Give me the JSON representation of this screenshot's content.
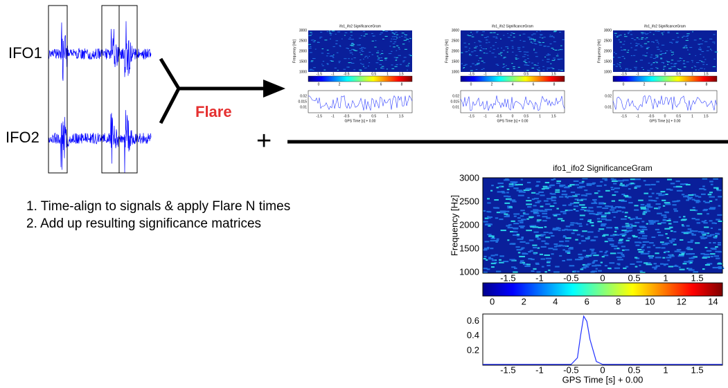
{
  "labels": {
    "ifo1": "IFO1",
    "ifo2": "IFO2",
    "flare": "Flare",
    "plus": "+"
  },
  "steps": [
    "1. Time-align to signals & apply Flare N times",
    "2. Add up resulting significance matrices"
  ],
  "small_plots": [
    {
      "title": "ifo1_ifo2 SignificanceGram",
      "ylabel": "Frequency [Hz]",
      "yticks": [
        3000,
        2500,
        2000,
        1500,
        1000
      ],
      "xticks": [
        -1.5,
        -1,
        -0.5,
        0,
        0.5,
        1,
        1.5
      ],
      "cticks": [
        0,
        2,
        4,
        6,
        8
      ],
      "lower_yticks": [
        0.02,
        0.015,
        0.01
      ],
      "xlabel": "GPS Time [s] + 0.00"
    },
    {
      "title": "ifo1_ifo2 SignificanceGram",
      "ylabel": "Frequency [Hz]",
      "yticks": [
        3000,
        2500,
        2000,
        1500,
        1000
      ],
      "xticks": [
        -1.5,
        -1,
        -0.5,
        0,
        0.5,
        1,
        1.5
      ],
      "cticks": [
        0,
        2,
        4,
        6,
        8
      ],
      "lower_yticks": [
        0.02,
        0.015,
        0.01
      ],
      "xlabel": "GPS Time [s] + 0.00"
    },
    {
      "title": "ifo1_ifo2 SignificanceGram",
      "ylabel": "Frequency [Hz]",
      "yticks": [
        3000,
        2500,
        2000,
        1500,
        1000
      ],
      "xticks": [
        -1.5,
        -1,
        -0.5,
        0,
        0.5,
        1,
        1.5
      ],
      "cticks": [
        0,
        2,
        4,
        6,
        8
      ],
      "lower_yticks": [
        0.02,
        0.01
      ],
      "xlabel": "GPS Time [s] + 0.00"
    }
  ],
  "big_plot": {
    "title": "ifo1_ifo2 SignificanceGram",
    "ylabel": "Frequency [Hz]",
    "yticks": [
      3000,
      2500,
      2000,
      1500,
      1000
    ],
    "ylim": [
      1000,
      3000
    ],
    "xticks": [
      -1.5,
      -1,
      -0.5,
      0,
      0.5,
      1,
      1.5
    ],
    "xlim": [
      -1.9,
      1.9
    ],
    "cticks": [
      0,
      2,
      4,
      6,
      8,
      10,
      12,
      14
    ],
    "clim": [
      -0.6,
      14.6
    ],
    "lower_yticks": [
      0.6,
      0.4,
      0.2
    ],
    "lower_ylim": [
      0,
      0.7
    ],
    "xlabel": "GPS Time [s] + 0.00",
    "curve": {
      "x": [
        -1.9,
        -0.5,
        -0.4,
        -0.35,
        -0.3,
        -0.25,
        -0.2,
        -0.1,
        0,
        1.9
      ],
      "y": [
        0.01,
        0.01,
        0.1,
        0.4,
        0.67,
        0.6,
        0.35,
        0.05,
        0.01,
        0.01
      ]
    }
  }
}
